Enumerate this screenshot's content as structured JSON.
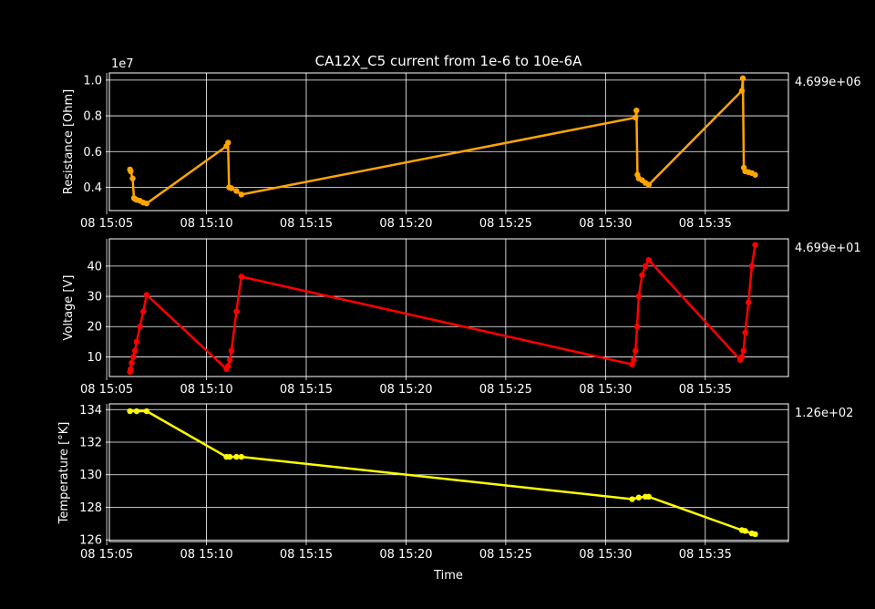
{
  "title": "CA12X_C5 current from 1e-6 to 10e-6A",
  "chart_data": [
    {
      "type": "line",
      "ylabel": "Resistance [Ohm]",
      "offset_label": "1e7",
      "side_label": "4.699e+06",
      "color": "#ffa500",
      "ylim": [
        0.27,
        1.04
      ],
      "yticks": [
        {
          "v": 0.4,
          "label": "0.4"
        },
        {
          "v": 0.6,
          "label": "0.6"
        },
        {
          "v": 0.8,
          "label": "0.8"
        },
        {
          "v": 1.0,
          "label": "1.0"
        }
      ],
      "series": [
        {
          "x": [
            "15:06:10",
            "15:06:12",
            "15:06:18",
            "15:06:22",
            "15:06:25",
            "15:06:30",
            "15:06:40",
            "15:06:50",
            "15:07:00",
            "15:11:00",
            "15:11:05",
            "15:11:08",
            "15:11:15",
            "15:11:30",
            "15:11:45",
            "15:31:30",
            "15:31:33",
            "15:31:36",
            "15:31:40",
            "15:31:50",
            "15:32:00",
            "15:32:10",
            "15:36:50",
            "15:36:53",
            "15:36:56",
            "15:37:00",
            "15:37:10",
            "15:37:20",
            "15:37:30"
          ],
          "y": [
            0.5,
            0.49,
            0.45,
            0.34,
            0.335,
            0.33,
            0.325,
            0.315,
            0.31,
            0.63,
            0.65,
            0.4,
            0.395,
            0.38,
            0.36,
            0.79,
            0.83,
            0.47,
            0.45,
            0.44,
            0.425,
            0.415,
            0.94,
            1.01,
            0.51,
            0.49,
            0.485,
            0.48,
            0.47
          ]
        }
      ]
    },
    {
      "type": "line",
      "ylabel": "Voltage [V]",
      "side_label": "4.699e+01",
      "color": "#ff0000",
      "ylim": [
        3.5,
        49
      ],
      "yticks": [
        {
          "v": 10,
          "label": "10"
        },
        {
          "v": 20,
          "label": "20"
        },
        {
          "v": 30,
          "label": "30"
        },
        {
          "v": 40,
          "label": "40"
        }
      ],
      "series": [
        {
          "x": [
            "15:06:10",
            "15:06:12",
            "15:06:15",
            "15:06:20",
            "15:06:25",
            "15:06:30",
            "15:06:40",
            "15:06:50",
            "15:07:00",
            "15:11:00",
            "15:11:05",
            "15:11:10",
            "15:11:15",
            "15:11:30",
            "15:11:45",
            "15:31:20",
            "15:31:25",
            "15:31:30",
            "15:31:35",
            "15:31:40",
            "15:31:50",
            "15:32:00",
            "15:32:10",
            "15:36:45",
            "15:36:50",
            "15:36:55",
            "15:37:00",
            "15:37:10",
            "15:37:20",
            "15:37:30"
          ],
          "y": [
            5,
            6,
            8,
            10,
            12,
            15,
            20,
            25,
            30.5,
            6,
            7,
            9,
            12,
            25,
            36.5,
            7.5,
            9,
            12,
            20,
            30,
            37,
            40,
            42,
            9,
            10,
            12,
            18,
            28,
            40,
            47
          ]
        }
      ]
    },
    {
      "type": "line",
      "ylabel": "Temperature [°K]",
      "side_label": "1.26e+02",
      "color": "#ffff00",
      "xlabel": "Time",
      "ylim": [
        125.9,
        134.35
      ],
      "yticks": [
        {
          "v": 126,
          "label": "126"
        },
        {
          "v": 128,
          "label": "128"
        },
        {
          "v": 130,
          "label": "130"
        },
        {
          "v": 132,
          "label": "132"
        },
        {
          "v": 134,
          "label": "134"
        }
      ],
      "series": [
        {
          "x": [
            "15:06:10",
            "15:06:30",
            "15:07:00",
            "15:11:00",
            "15:11:10",
            "15:11:30",
            "15:11:45",
            "15:31:20",
            "15:31:40",
            "15:32:00",
            "15:32:10",
            "15:36:50",
            "15:37:00",
            "15:37:20",
            "15:37:30"
          ],
          "y": [
            133.9,
            133.9,
            133.9,
            131.1,
            131.1,
            131.1,
            131.1,
            128.5,
            128.6,
            128.65,
            128.65,
            126.6,
            126.55,
            126.4,
            126.35
          ]
        }
      ]
    }
  ],
  "xaxis": {
    "ticks": [
      {
        "t": "15:05",
        "label": "08 15:05"
      },
      {
        "t": "15:10",
        "label": "08 15:10"
      },
      {
        "t": "15:15",
        "label": "08 15:15"
      },
      {
        "t": "15:20",
        "label": "08 15:20"
      },
      {
        "t": "15:25",
        "label": "08 15:25"
      },
      {
        "t": "15:30",
        "label": "08 15:30"
      },
      {
        "t": "15:35",
        "label": "08 15:35"
      }
    ],
    "xlim": [
      "15:05:08",
      "15:39:10"
    ]
  }
}
